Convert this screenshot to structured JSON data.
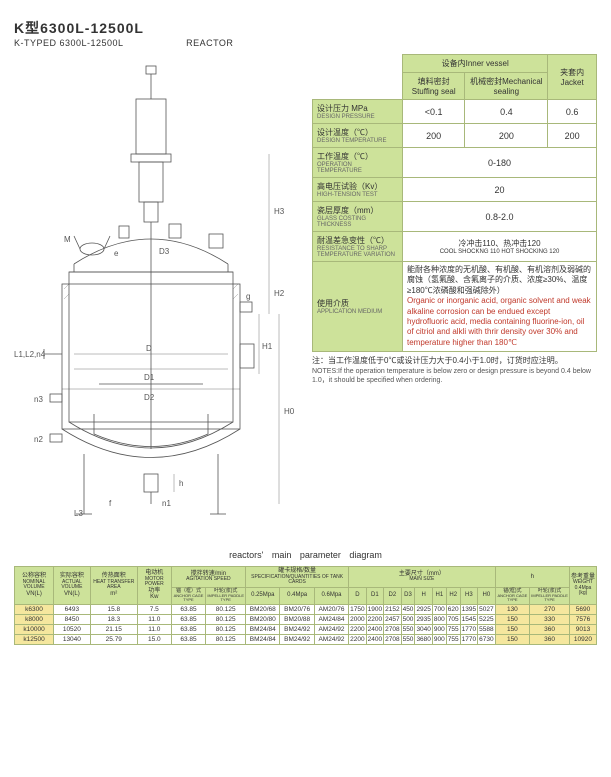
{
  "title": {
    "main": "K型6300L-12500L",
    "sub": "K-TYPED 6300L-12500L",
    "kind": "REACTOR"
  },
  "spec_headers": {
    "inner_vessel_cn": "设备内",
    "inner_vessel_en": "Inner vessel",
    "jacket_cn": "夹套内",
    "jacket_en": "Jacket",
    "stuffing_cn": "填料密封",
    "stuffing_en": "Stuffing seal",
    "mech_cn": "机械密封",
    "mech_en": "Mechanical sealing"
  },
  "spec_rows": [
    {
      "cn": "设计压力 MPa",
      "en": "DESIGN PRESSURE",
      "v1": "<0.1",
      "v2": "0.4",
      "v3": "0.6"
    },
    {
      "cn": "设计温度（℃）",
      "en": "DESIGN TEMPERATURE",
      "v1": "200",
      "v2": "200",
      "v3": "200"
    },
    {
      "cn": "工作温度（℃）",
      "en": "OPERATION TEMPERATURE",
      "span": "0-180"
    },
    {
      "cn": "高电压试验（Kv）",
      "en": "HIGH-TENSION TEST",
      "span": "20"
    },
    {
      "cn": "瓷层厚度（mm）",
      "en": "GLASS COSTING THICKNESS",
      "span": "0.8-2.0"
    },
    {
      "cn": "耐温差急变性（℃）",
      "en": "RESISTANCE TO SHARP TEMPERATURE VARIATION",
      "span_cn": "冷冲击110、热冲击120",
      "span_en": "COOL SHOCKNG 110 HOT SHOCKING 120"
    }
  ],
  "application": {
    "label_cn": "使用介质",
    "label_en": "APPLICATION MEDIUM",
    "cn": "能耐各种浓度的无机酸、有机酸、有机溶剂及弱碱的腐蚀（氢氟酸、含氟离子的介质、浓度≥30%、温度≥180℃浓磷酸和强碱除外）",
    "en": "Organic or inorganic acid, organic solvent and weak alkaline corrosion can be endued except hydrofluoric acid, media containing fluorine-ion, oil of citriol and alkli with thrir density over 30% and temperature higher than 180℃"
  },
  "note": {
    "cn": "注：当工作温度低于0℃或设计压力大于0.4小于1.0时，订货时应注明。",
    "en": "NOTES:If the operation temperature is below zero or design pressure is beyond 0.4 below 1.0，it should be specified when ordering."
  },
  "caption": "reactors' main parameter diagram",
  "param": {
    "group_headers": [
      {
        "cn": "公称容积",
        "en": "NOMINAL VOLUME",
        "unit": "VN(L)"
      },
      {
        "cn": "实际容积",
        "en": "ACTUAL VOLUME",
        "unit": "VN(L)"
      },
      {
        "cn": "传热面积",
        "en": "HEAT TRANSFER AREA",
        "unit": "m²"
      },
      {
        "cn": "电动机",
        "en": "MOTOR POWER",
        "sub_cn": "功率",
        "unit": "Kw"
      },
      {
        "cn": "搅拌转速/min",
        "en": "AGITATION SPEED"
      },
      {
        "cn": "罐卡规格/数量",
        "en": "SPECIFICATION/QUANTITIES OF TANK CARDS"
      },
      {
        "cn": "主要尺寸（mm）",
        "en": "MAIN SIZE"
      },
      {
        "label": "h"
      },
      {
        "cn": "参考重量",
        "en": "WEIGHT",
        "unit": "0.4Mpa (kg)"
      }
    ],
    "speed_sub": [
      {
        "cn": "锚（框）式",
        "en": "ANCHOR CAGE TYPE"
      },
      {
        "cn": "叶轮(浆)式",
        "en": "IMPELLER PADDLE TYPE"
      }
    ],
    "card_sub": [
      "0.25Mpa",
      "0.4Mpa",
      "0.6Mpa"
    ],
    "size_sub": [
      "D",
      "D1",
      "D2",
      "D3",
      "H",
      "H1",
      "H2",
      "H3",
      "H0"
    ],
    "h_sub": [
      {
        "cn": "锚(框)式",
        "en": "ANCHOR CAGE TYPE"
      },
      {
        "cn": "叶轮(浆)式",
        "en": "IMPELLER PADDLE TYPE"
      }
    ],
    "rows": [
      [
        "k6300",
        "6493",
        "15.8",
        "7.5",
        "63.85",
        "80.125",
        "BM20/68",
        "BM20/76",
        "AM20/76",
        "1750",
        "1900",
        "2152",
        "450",
        "2925",
        "700",
        "620",
        "1395",
        "5027",
        "130",
        "270",
        "5690"
      ],
      [
        "k8000",
        "8450",
        "18.3",
        "11.0",
        "63.85",
        "80.125",
        "BM20/80",
        "BM20/88",
        "AM24/84",
        "2000",
        "2200",
        "2457",
        "500",
        "2935",
        "800",
        "705",
        "1545",
        "5225",
        "150",
        "330",
        "7576"
      ],
      [
        "k10000",
        "10520",
        "21.15",
        "11.0",
        "63.85",
        "80.125",
        "BM24/84",
        "BM24/92",
        "AM24/92",
        "2200",
        "2400",
        "2708",
        "550",
        "3040",
        "900",
        "755",
        "1770",
        "5588",
        "150",
        "360",
        "9013"
      ],
      [
        "k12500",
        "13040",
        "25.79",
        "15.0",
        "63.85",
        "80.125",
        "BM24/84",
        "BM24/92",
        "AM24/92",
        "2200",
        "2400",
        "2708",
        "550",
        "3680",
        "900",
        "755",
        "1770",
        "6730",
        "150",
        "360",
        "10920"
      ]
    ]
  }
}
